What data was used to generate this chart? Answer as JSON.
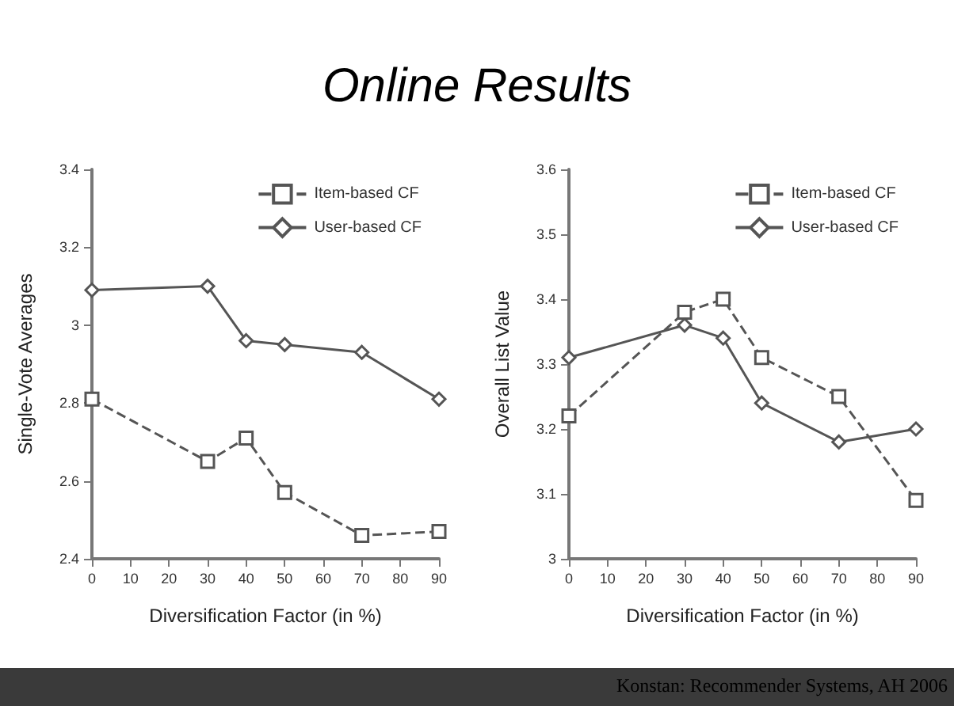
{
  "chart_data": [
    {
      "type": "line",
      "title": "Online Results",
      "xlabel": "Diversification Factor (in %)",
      "ylabel": "Single-Vote Averages",
      "x": [
        0,
        30,
        40,
        50,
        70,
        90
      ],
      "xlim": [
        0,
        90
      ],
      "xticks": [
        0,
        10,
        20,
        30,
        40,
        50,
        60,
        70,
        80,
        90
      ],
      "ylim": [
        2.4,
        3.4
      ],
      "yticks": [
        2.4,
        2.6,
        2.8,
        3,
        3.2,
        3.4
      ],
      "grid": false,
      "legend": "top right",
      "series": [
        {
          "name": "Item-based CF",
          "color": "#555555",
          "marker": "square",
          "line_style": "dashed",
          "values": [
            2.81,
            2.65,
            2.71,
            2.57,
            2.46,
            2.47
          ]
        },
        {
          "name": "User-based CF",
          "color": "#555555",
          "marker": "diamond",
          "line_style": "solid",
          "values": [
            3.09,
            3.1,
            2.96,
            2.95,
            2.93,
            2.81
          ]
        }
      ]
    },
    {
      "type": "line",
      "xlabel": "Diversification Factor (in %)",
      "ylabel": "Overall List Value",
      "x": [
        0,
        30,
        40,
        50,
        70,
        90
      ],
      "xlim": [
        0,
        90
      ],
      "xticks": [
        0,
        10,
        20,
        30,
        40,
        50,
        60,
        70,
        80,
        90
      ],
      "ylim": [
        3,
        3.6
      ],
      "yticks": [
        3,
        3.1,
        3.2,
        3.3,
        3.4,
        3.5,
        3.6
      ],
      "grid": false,
      "legend": "top right",
      "annotations": [
        "Konstan:  Recommender Systems, AH 2006"
      ],
      "series": [
        {
          "name": "Item-based CF",
          "color": "#555555",
          "marker": "square",
          "line_style": "dashed",
          "values": [
            3.22,
            3.38,
            3.4,
            3.31,
            3.25,
            3.09
          ]
        },
        {
          "name": "User-based CF",
          "color": "#555555",
          "marker": "diamond",
          "line_style": "solid",
          "values": [
            3.31,
            3.36,
            3.34,
            3.24,
            3.18,
            3.2
          ]
        }
      ]
    }
  ]
}
